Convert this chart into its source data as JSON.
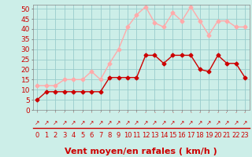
{
  "hours": [
    0,
    1,
    2,
    3,
    4,
    5,
    6,
    7,
    8,
    9,
    10,
    11,
    12,
    13,
    14,
    15,
    16,
    17,
    18,
    19,
    20,
    21,
    22,
    23
  ],
  "vent_moyen": [
    5,
    9,
    9,
    9,
    9,
    9,
    9,
    9,
    16,
    16,
    16,
    16,
    27,
    27,
    23,
    27,
    27,
    27,
    20,
    19,
    27,
    23,
    23,
    16
  ],
  "vent_rafales": [
    12,
    12,
    12,
    15,
    15,
    15,
    19,
    15,
    23,
    30,
    41,
    47,
    51,
    43,
    41,
    48,
    44,
    51,
    44,
    37,
    44,
    44,
    41,
    41
  ],
  "color_moyen": "#cc0000",
  "color_rafales": "#ffaaaa",
  "bg_color": "#cceee8",
  "grid_color": "#99cccc",
  "xlabel": "Vent moyen/en rafales ( km/h )",
  "yticks": [
    0,
    5,
    10,
    15,
    20,
    25,
    30,
    35,
    40,
    45,
    50
  ],
  "ylim": [
    0,
    52
  ],
  "xlim": [
    -0.5,
    23.5
  ],
  "tick_fontsize": 6.5,
  "xlabel_fontsize": 8,
  "marker_size": 2.5,
  "linewidth": 1.0,
  "arrow_char": "↗"
}
